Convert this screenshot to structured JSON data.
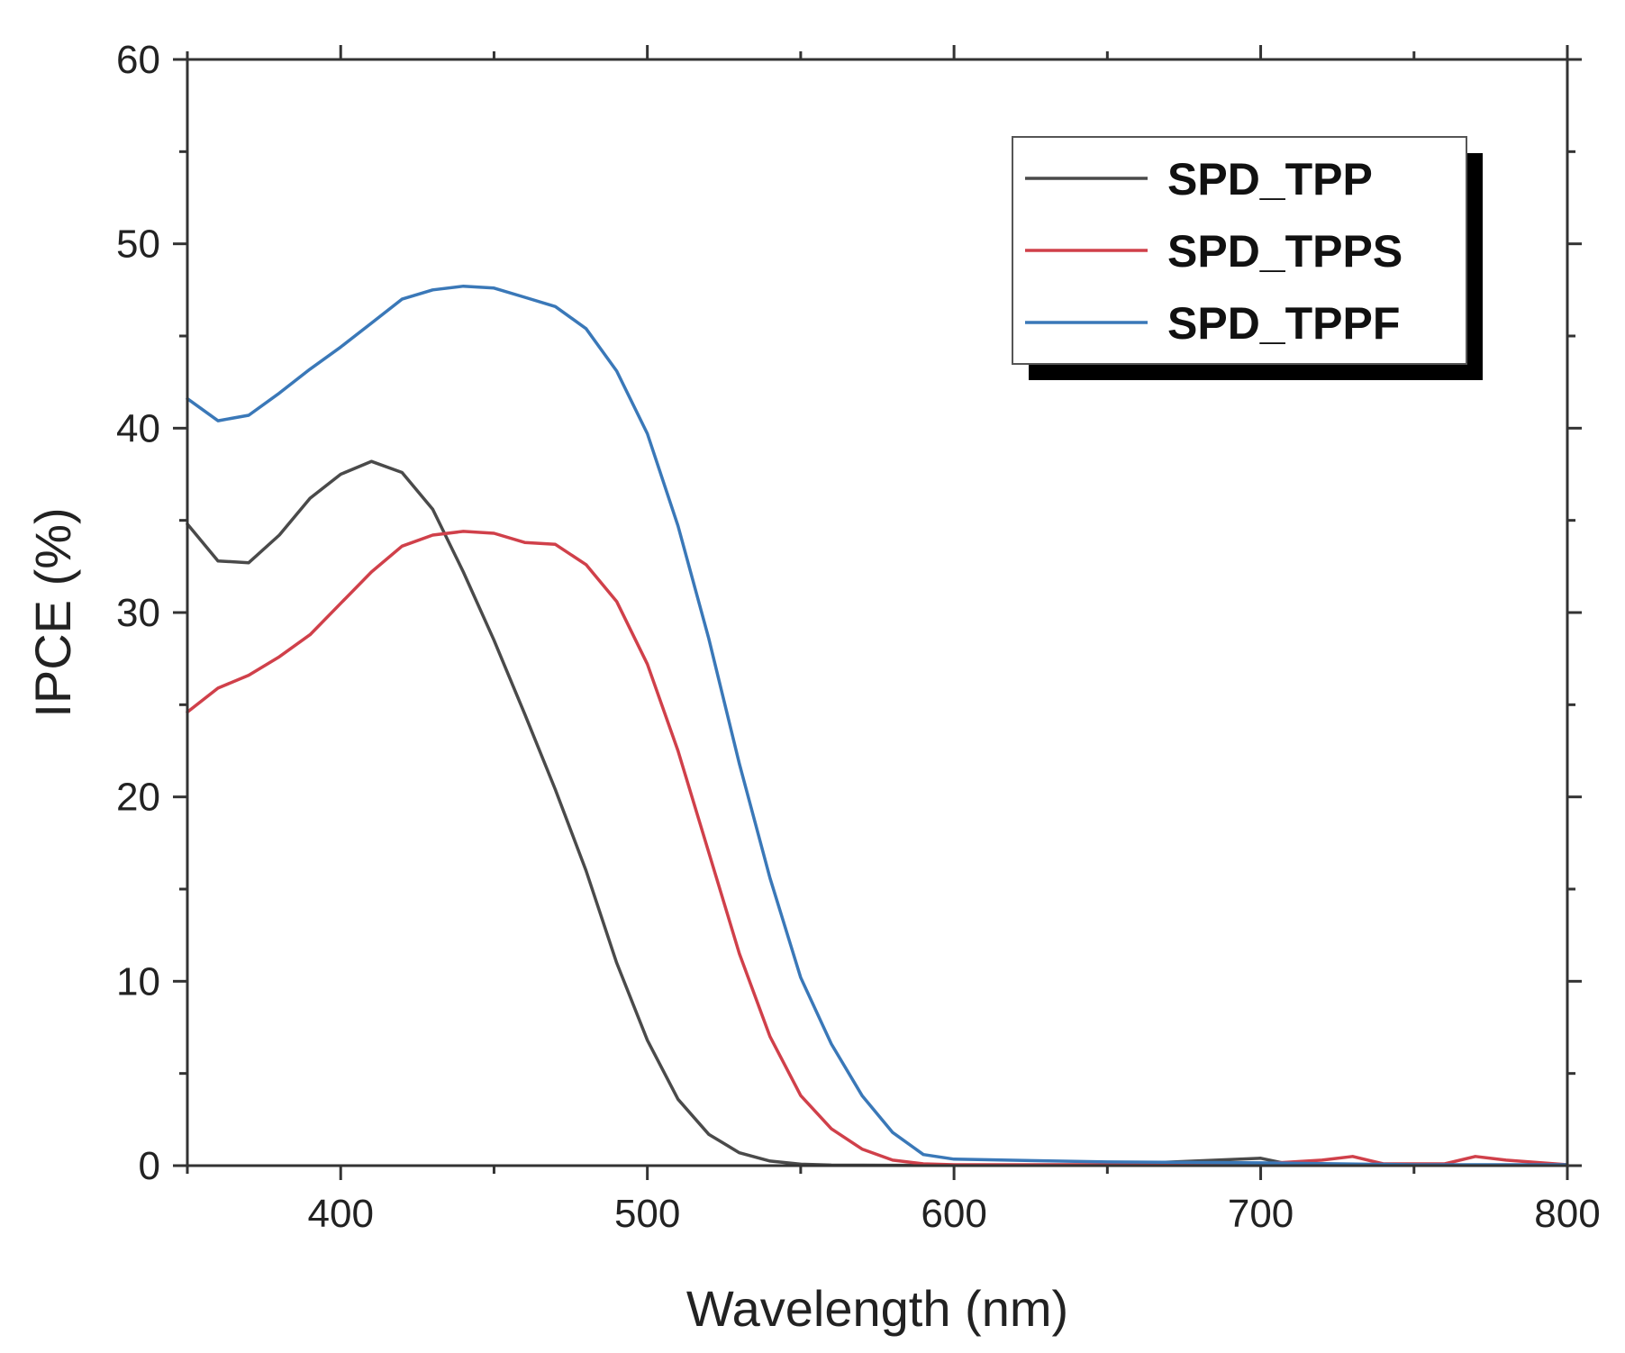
{
  "chart_data": {
    "type": "line",
    "title": "",
    "xlabel": "Wavelength (nm)",
    "ylabel": "IPCE (%)",
    "xlim": [
      350,
      800
    ],
    "ylim": [
      0,
      60
    ],
    "xticks": [
      400,
      500,
      600,
      700,
      800
    ],
    "yticks": [
      0,
      10,
      20,
      30,
      40,
      50,
      60
    ],
    "grid": false,
    "legend_position": "top-right",
    "series": [
      {
        "name": "SPD_TPP",
        "color": "#4a4a4a",
        "x": [
          350,
          360,
          370,
          380,
          390,
          400,
          410,
          420,
          430,
          440,
          450,
          460,
          470,
          480,
          490,
          500,
          510,
          520,
          530,
          540,
          550,
          560,
          580,
          600,
          650,
          700,
          710,
          750,
          800
        ],
        "y": [
          34.8,
          32.8,
          32.7,
          34.2,
          36.2,
          37.5,
          38.2,
          37.6,
          35.6,
          32.2,
          28.5,
          24.5,
          20.4,
          16.0,
          11.0,
          6.8,
          3.6,
          1.7,
          0.7,
          0.25,
          0.08,
          0.03,
          0.02,
          0.02,
          0.05,
          0.4,
          0.05,
          0.02,
          0.02
        ]
      },
      {
        "name": "SPD_TPPS",
        "color": "#d0404a",
        "x": [
          350,
          360,
          370,
          380,
          390,
          400,
          410,
          420,
          430,
          440,
          450,
          460,
          470,
          480,
          490,
          500,
          510,
          520,
          530,
          540,
          550,
          560,
          570,
          580,
          590,
          600,
          650,
          700,
          720,
          730,
          740,
          760,
          770,
          780,
          800
        ],
        "y": [
          24.6,
          25.9,
          26.6,
          27.6,
          28.8,
          30.5,
          32.2,
          33.6,
          34.2,
          34.4,
          34.3,
          33.8,
          33.7,
          32.6,
          30.6,
          27.2,
          22.5,
          17.0,
          11.5,
          7.0,
          3.8,
          2.0,
          0.9,
          0.3,
          0.1,
          0.05,
          0.05,
          0.1,
          0.3,
          0.5,
          0.1,
          0.1,
          0.5,
          0.3,
          0.05
        ]
      },
      {
        "name": "SPD_TPPF",
        "color": "#3a78b8",
        "x": [
          350,
          360,
          370,
          380,
          390,
          400,
          410,
          420,
          430,
          440,
          450,
          460,
          470,
          480,
          490,
          500,
          510,
          520,
          530,
          540,
          550,
          560,
          570,
          580,
          590,
          600,
          650,
          700,
          750,
          800
        ],
        "y": [
          41.6,
          40.4,
          40.7,
          41.9,
          43.2,
          44.4,
          45.7,
          47.0,
          47.5,
          47.7,
          47.6,
          47.1,
          46.6,
          45.4,
          43.1,
          39.7,
          34.7,
          28.6,
          21.8,
          15.6,
          10.2,
          6.6,
          3.8,
          1.8,
          0.6,
          0.35,
          0.2,
          0.15,
          0.05,
          0.05
        ]
      }
    ]
  }
}
